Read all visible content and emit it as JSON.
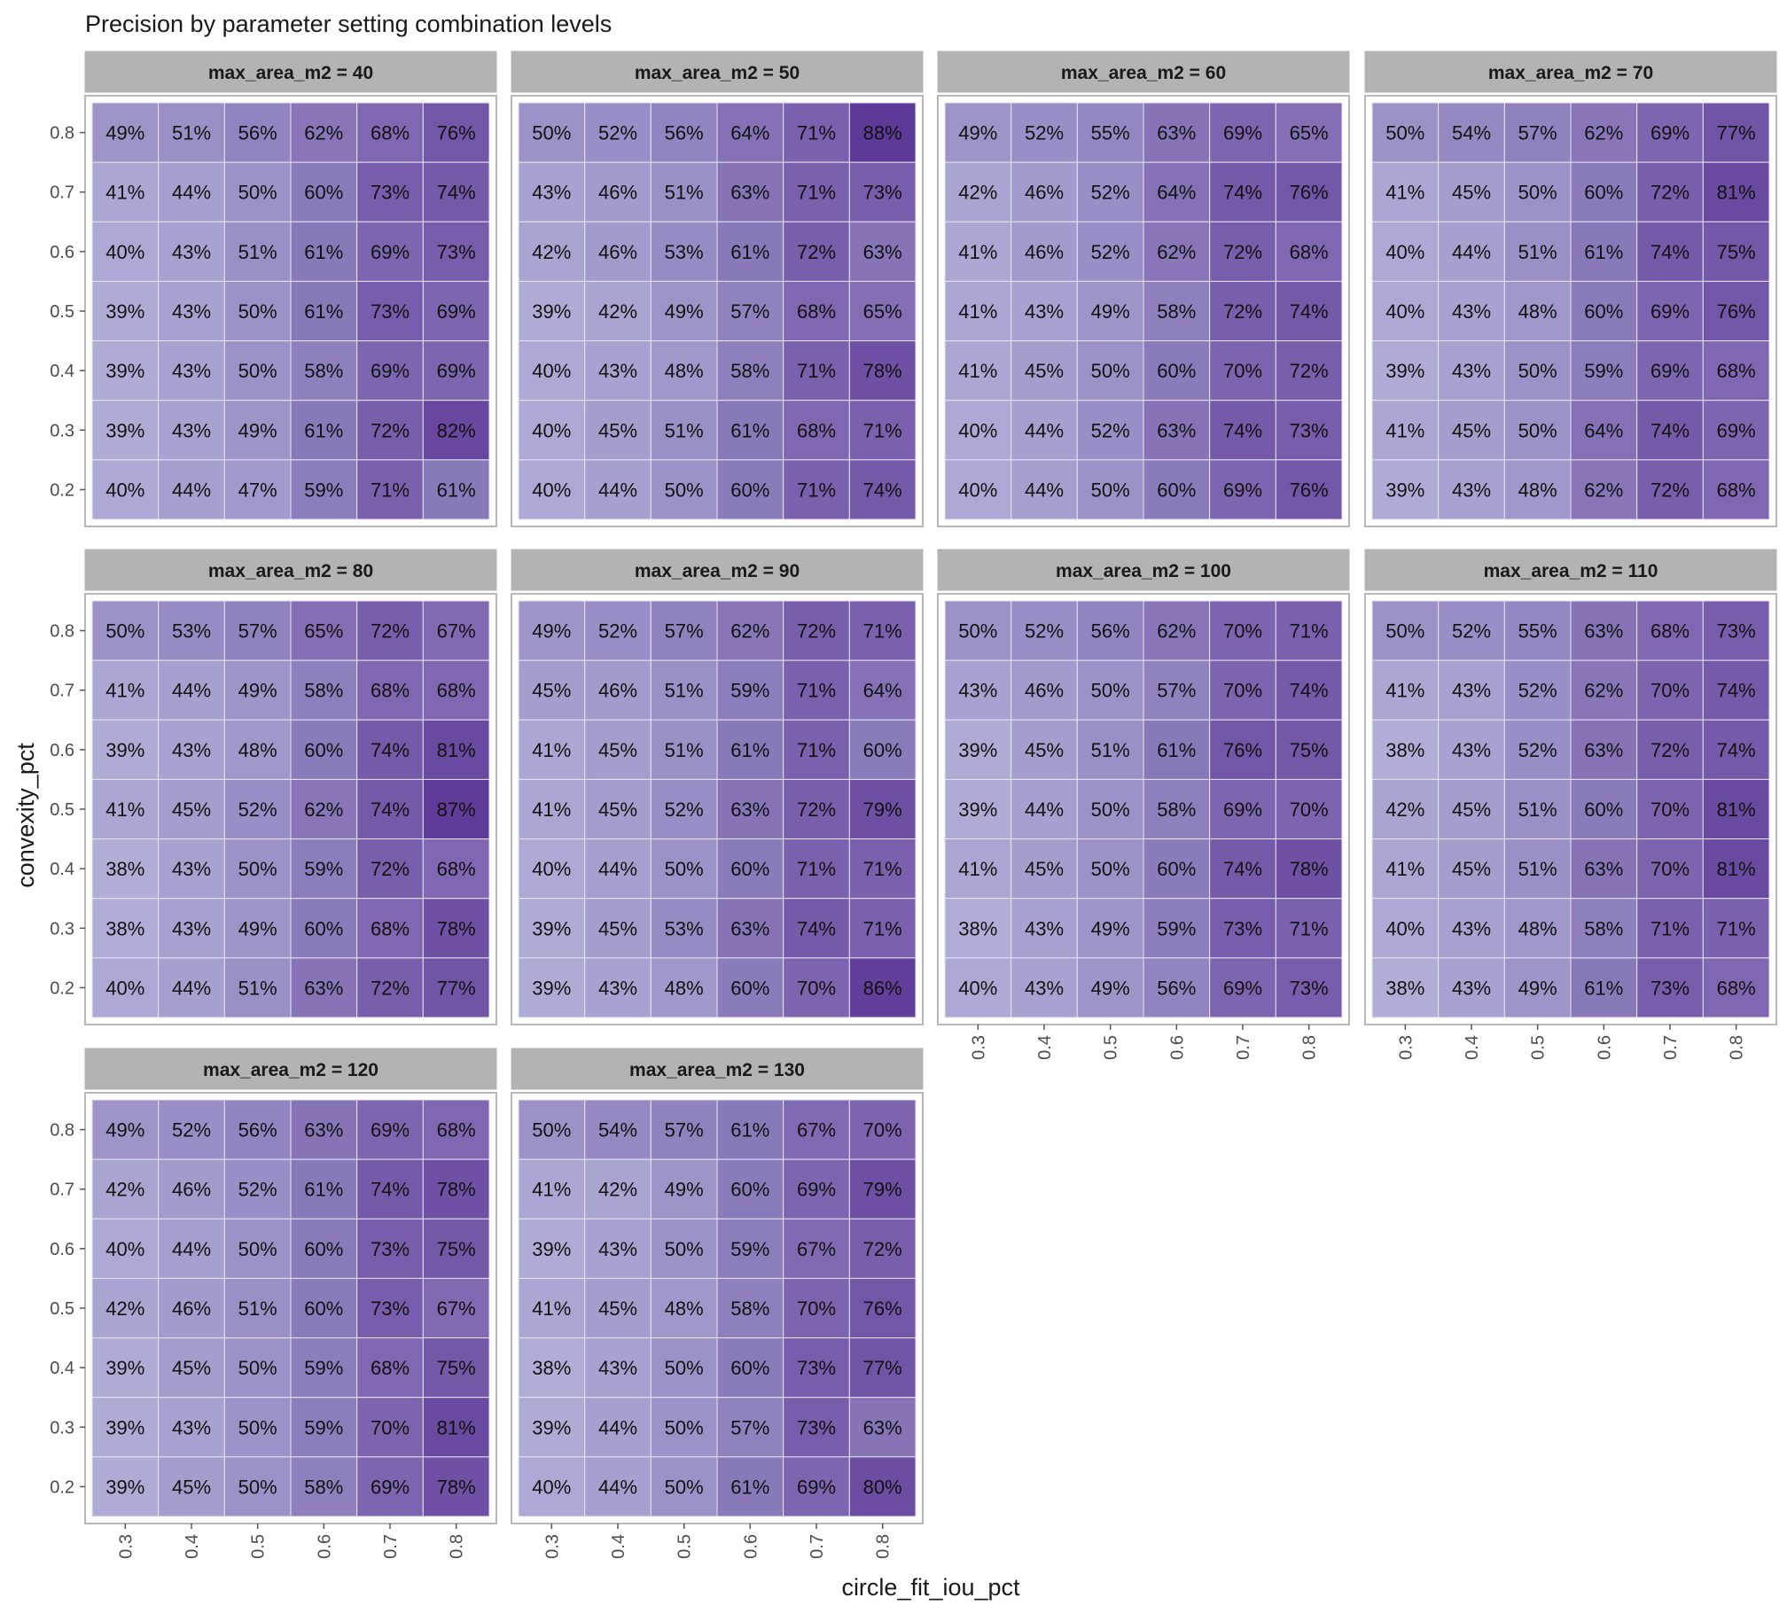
{
  "chart_data": {
    "type": "heatmap",
    "title": "Precision by parameter setting combination levels",
    "xlabel": "circle_fit_iou_pct",
    "ylabel": "convexity_pct",
    "x_ticks": [
      "0.3",
      "0.4",
      "0.5",
      "0.6",
      "0.7",
      "0.8"
    ],
    "y_ticks": [
      "0.8",
      "0.7",
      "0.6",
      "0.5",
      "0.4",
      "0.3",
      "0.2"
    ],
    "value_format": "percent",
    "color_low": "#b0aed6",
    "color_high": "#5e3a98",
    "grid_lines": true,
    "panels": [
      {
        "strip": "max_area_m2 = 40",
        "values": [
          [
            49,
            51,
            56,
            62,
            68,
            76
          ],
          [
            41,
            44,
            50,
            60,
            73,
            74
          ],
          [
            40,
            43,
            51,
            61,
            69,
            73
          ],
          [
            39,
            43,
            50,
            61,
            73,
            69
          ],
          [
            39,
            43,
            50,
            58,
            69,
            69
          ],
          [
            39,
            43,
            49,
            61,
            72,
            82
          ],
          [
            40,
            44,
            47,
            59,
            71,
            61
          ]
        ]
      },
      {
        "strip": "max_area_m2 = 50",
        "values": [
          [
            50,
            52,
            56,
            64,
            71,
            88
          ],
          [
            43,
            46,
            51,
            63,
            71,
            73
          ],
          [
            42,
            46,
            53,
            61,
            72,
            63
          ],
          [
            39,
            42,
            49,
            57,
            68,
            65
          ],
          [
            40,
            43,
            48,
            58,
            71,
            78
          ],
          [
            40,
            45,
            51,
            61,
            68,
            71
          ],
          [
            40,
            44,
            50,
            60,
            71,
            74
          ]
        ]
      },
      {
        "strip": "max_area_m2 = 60",
        "values": [
          [
            49,
            52,
            55,
            63,
            69,
            65
          ],
          [
            42,
            46,
            52,
            64,
            74,
            76
          ],
          [
            41,
            46,
            52,
            62,
            72,
            68
          ],
          [
            41,
            43,
            49,
            58,
            72,
            74
          ],
          [
            41,
            45,
            50,
            60,
            70,
            72
          ],
          [
            40,
            44,
            52,
            63,
            74,
            73
          ],
          [
            40,
            44,
            50,
            60,
            69,
            76
          ]
        ]
      },
      {
        "strip": "max_area_m2 = 70",
        "values": [
          [
            50,
            54,
            57,
            62,
            69,
            77
          ],
          [
            41,
            45,
            50,
            60,
            72,
            81
          ],
          [
            40,
            44,
            51,
            61,
            74,
            75
          ],
          [
            40,
            43,
            48,
            60,
            69,
            76
          ],
          [
            39,
            43,
            50,
            59,
            69,
            68
          ],
          [
            41,
            45,
            50,
            64,
            74,
            69
          ],
          [
            39,
            43,
            48,
            62,
            72,
            68
          ]
        ]
      },
      {
        "strip": "max_area_m2 = 80",
        "values": [
          [
            50,
            53,
            57,
            65,
            72,
            67
          ],
          [
            41,
            44,
            49,
            58,
            68,
            68
          ],
          [
            39,
            43,
            48,
            60,
            74,
            81
          ],
          [
            41,
            45,
            52,
            62,
            74,
            87
          ],
          [
            38,
            43,
            50,
            59,
            72,
            68
          ],
          [
            38,
            43,
            49,
            60,
            68,
            78
          ],
          [
            40,
            44,
            51,
            63,
            72,
            77
          ]
        ]
      },
      {
        "strip": "max_area_m2 = 90",
        "values": [
          [
            49,
            52,
            57,
            62,
            72,
            71
          ],
          [
            45,
            46,
            51,
            59,
            71,
            64
          ],
          [
            41,
            45,
            51,
            61,
            71,
            60
          ],
          [
            41,
            45,
            52,
            63,
            72,
            79
          ],
          [
            40,
            44,
            50,
            60,
            71,
            71
          ],
          [
            39,
            45,
            53,
            63,
            74,
            71
          ],
          [
            39,
            43,
            48,
            60,
            70,
            86
          ]
        ]
      },
      {
        "strip": "max_area_m2 = 100",
        "values": [
          [
            50,
            52,
            56,
            62,
            70,
            71
          ],
          [
            43,
            46,
            50,
            57,
            70,
            74
          ],
          [
            39,
            45,
            51,
            61,
            76,
            75
          ],
          [
            39,
            44,
            50,
            58,
            69,
            70
          ],
          [
            41,
            45,
            50,
            60,
            74,
            78
          ],
          [
            38,
            43,
            49,
            59,
            73,
            71
          ],
          [
            40,
            43,
            49,
            56,
            69,
            73
          ]
        ]
      },
      {
        "strip": "max_area_m2 = 110",
        "values": [
          [
            50,
            52,
            55,
            63,
            68,
            73
          ],
          [
            41,
            43,
            52,
            62,
            70,
            74
          ],
          [
            38,
            43,
            52,
            63,
            72,
            74
          ],
          [
            42,
            45,
            51,
            60,
            70,
            81
          ],
          [
            41,
            45,
            51,
            63,
            70,
            81
          ],
          [
            40,
            43,
            48,
            58,
            71,
            71
          ],
          [
            38,
            43,
            49,
            61,
            73,
            68
          ]
        ]
      },
      {
        "strip": "max_area_m2 = 120",
        "values": [
          [
            49,
            52,
            56,
            63,
            69,
            68
          ],
          [
            42,
            46,
            52,
            61,
            74,
            78
          ],
          [
            40,
            44,
            50,
            60,
            73,
            75
          ],
          [
            42,
            46,
            51,
            60,
            73,
            67
          ],
          [
            39,
            45,
            50,
            59,
            68,
            75
          ],
          [
            39,
            43,
            50,
            59,
            70,
            81
          ],
          [
            39,
            45,
            50,
            58,
            69,
            78
          ]
        ]
      },
      {
        "strip": "max_area_m2 = 130",
        "values": [
          [
            50,
            54,
            57,
            61,
            67,
            70
          ],
          [
            41,
            42,
            49,
            60,
            69,
            79
          ],
          [
            39,
            43,
            50,
            59,
            67,
            72
          ],
          [
            41,
            45,
            48,
            58,
            70,
            76
          ],
          [
            38,
            43,
            50,
            60,
            73,
            77
          ],
          [
            39,
            44,
            50,
            57,
            73,
            63
          ],
          [
            40,
            44,
            50,
            61,
            69,
            80
          ]
        ]
      }
    ]
  }
}
